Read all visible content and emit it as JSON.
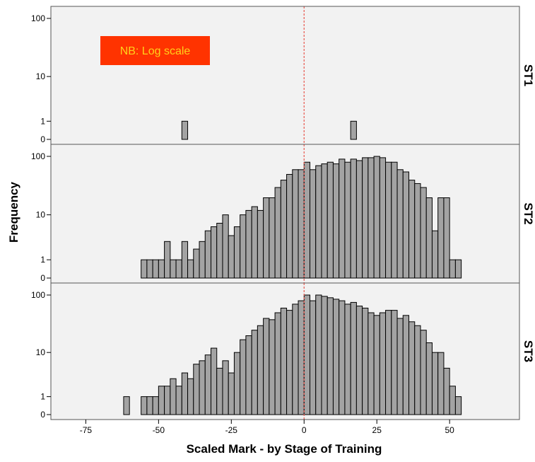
{
  "chart_data": {
    "type": "histogram",
    "title": "",
    "xlabel": "Scaled Mark - by Stage of Training",
    "ylabel": "Frequency",
    "annotation": "NB: Log scale",
    "xlim": [
      -87,
      74
    ],
    "x_ticks": [
      -75,
      -50,
      -25,
      0,
      25,
      50
    ],
    "x_tick_labels": [
      "-75",
      "-50",
      "-25",
      "0",
      "25",
      "50"
    ],
    "y_scale": "log(1+y)",
    "y_ticks": [
      0,
      1,
      10,
      100
    ],
    "y_tick_labels": [
      "0",
      "1",
      "10",
      "100"
    ],
    "bin_width": 2,
    "reference_line": {
      "x": 0,
      "style": "dashed",
      "color": "#e8574e"
    },
    "colors": {
      "bar": "#a3a3a3",
      "panel_bg": "#f2f2f2",
      "annotation_bg": "#ff3300",
      "annotation_text": "#ffd11a"
    },
    "panels": [
      {
        "label": "ST1",
        "bin_starts": [
          -42,
          16
        ],
        "counts": [
          1,
          1
        ]
      },
      {
        "label": "ST2",
        "bin_starts": [
          -56,
          -54,
          -52,
          -50,
          -48,
          -46,
          -44,
          -42,
          -40,
          -38,
          -36,
          -34,
          -32,
          -30,
          -28,
          -26,
          -24,
          -22,
          -20,
          -18,
          -16,
          -14,
          -12,
          -10,
          -8,
          -6,
          -4,
          -2,
          0,
          2,
          4,
          6,
          8,
          10,
          12,
          14,
          16,
          18,
          20,
          22,
          24,
          26,
          28,
          30,
          32,
          34,
          36,
          38,
          40,
          42,
          44,
          46,
          48,
          50,
          52
        ],
        "counts": [
          1,
          1,
          1,
          1,
          3,
          1,
          1,
          3,
          1,
          2,
          3,
          5,
          6,
          7,
          10,
          4,
          6,
          10,
          12,
          14,
          12,
          20,
          20,
          30,
          40,
          50,
          60,
          60,
          80,
          60,
          70,
          75,
          80,
          75,
          90,
          80,
          90,
          85,
          95,
          95,
          100,
          95,
          80,
          80,
          60,
          55,
          40,
          35,
          30,
          20,
          5,
          20,
          20,
          1,
          1
        ]
      },
      {
        "label": "ST3",
        "bin_starts": [
          -62,
          -56,
          -54,
          -52,
          -50,
          -48,
          -46,
          -44,
          -42,
          -40,
          -38,
          -36,
          -34,
          -32,
          -30,
          -28,
          -26,
          -24,
          -22,
          -20,
          -18,
          -16,
          -14,
          -12,
          -10,
          -8,
          -6,
          -4,
          -2,
          0,
          2,
          4,
          6,
          8,
          10,
          12,
          14,
          16,
          18,
          20,
          22,
          24,
          26,
          28,
          30,
          32,
          34,
          36,
          38,
          40,
          42,
          44,
          46,
          48,
          50,
          52
        ],
        "counts": [
          1,
          1,
          1,
          1,
          2,
          2,
          3,
          2,
          4,
          3,
          6,
          7,
          9,
          12,
          5,
          7,
          4,
          10,
          17,
          20,
          25,
          30,
          40,
          38,
          50,
          60,
          55,
          70,
          80,
          100,
          80,
          100,
          95,
          90,
          85,
          80,
          70,
          75,
          65,
          60,
          50,
          45,
          50,
          55,
          55,
          40,
          45,
          35,
          30,
          25,
          15,
          10,
          10,
          5,
          2,
          1
        ]
      }
    ]
  }
}
